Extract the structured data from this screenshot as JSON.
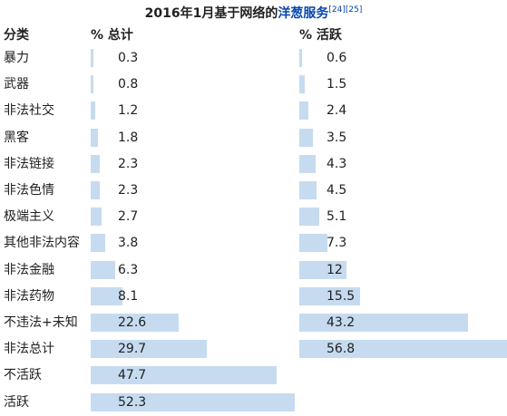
{
  "caption": {
    "prefix": "2016年1月基于网络的",
    "link": "洋葱服务",
    "refs": "[24][25]"
  },
  "headers": {
    "category": "分类",
    "percent_total": "% 总计",
    "percent_active": "% 活跃"
  },
  "rows": [
    {
      "category": "暴力",
      "total": "0.3",
      "active": "0.6"
    },
    {
      "category": "武器",
      "total": "0.8",
      "active": "1.5"
    },
    {
      "category": "非法社交",
      "total": "1.2",
      "active": "2.4"
    },
    {
      "category": "黑客",
      "total": "1.8",
      "active": "3.5"
    },
    {
      "category": "非法链接",
      "total": "2.3",
      "active": "4.3"
    },
    {
      "category": "非法色情",
      "total": "2.3",
      "active": "4.5"
    },
    {
      "category": "极端主义",
      "total": "2.7",
      "active": "5.1"
    },
    {
      "category": "其他非法内容",
      "total": "3.8",
      "active": "7.3"
    },
    {
      "category": "非法金融",
      "total": "6.3",
      "active": "12"
    },
    {
      "category": "非法药物",
      "total": "8.1",
      "active": "15.5"
    },
    {
      "category": "不违法+未知",
      "total": "22.6",
      "active": "43.2"
    },
    {
      "category": "非法总计",
      "total": "29.7",
      "active": "56.8"
    },
    {
      "category": "不活跃",
      "total": "47.7",
      "active": null
    },
    {
      "category": "活跃",
      "total": "52.3",
      "active": null
    }
  ],
  "bar_color": "#c6dbef"
}
